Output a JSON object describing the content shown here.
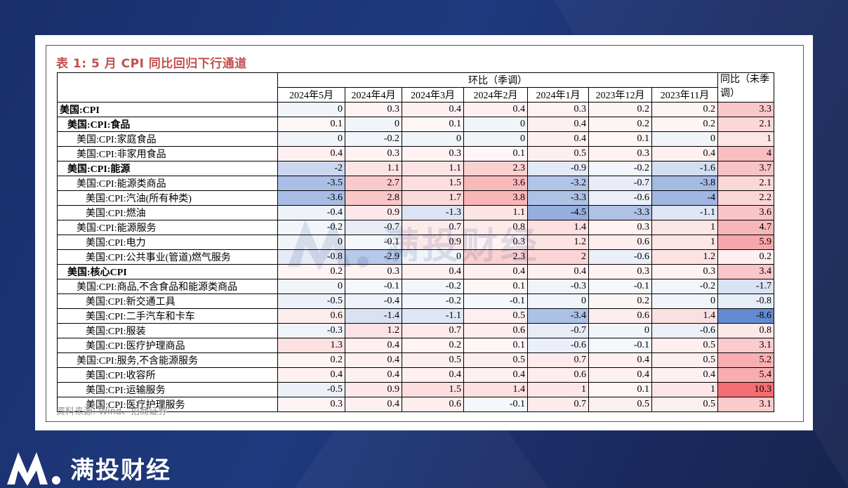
{
  "title": "表 1:  5 月 CPI 同比回归下行通道",
  "source": "资料来源: Wind、招商证券",
  "brand": "满投财经",
  "watermark": "满投财经",
  "table": {
    "group_header_mom": "环比（季调）",
    "group_header_yoy": "同比（未季调）",
    "columns": [
      "2024年5月",
      "2024年4月",
      "2024年3月",
      "2024年2月",
      "2024年1月",
      "2023年12月",
      "2023年11月"
    ],
    "rows": [
      {
        "label": "美国:CPI",
        "level": 0,
        "bold": true,
        "mom": [
          "0",
          "0.3",
          "0.4",
          "0.4",
          "0.3",
          "0.2",
          "0.2"
        ],
        "yoy": "3.3"
      },
      {
        "label": "美国:CPI:食品",
        "level": 1,
        "bold": true,
        "mom": [
          "0.1",
          "0",
          "0.1",
          "0",
          "0.4",
          "0.2",
          "0.2"
        ],
        "yoy": "2.1"
      },
      {
        "label": "美国:CPI:家庭食品",
        "level": 2,
        "bold": false,
        "mom": [
          "0",
          "-0.2",
          "0",
          "0",
          "0.4",
          "0.1",
          "0"
        ],
        "yoy": "1"
      },
      {
        "label": "美国:CPI:非家用食品",
        "level": 2,
        "bold": false,
        "mom": [
          "0.4",
          "0.3",
          "0.3",
          "0.1",
          "0.5",
          "0.3",
          "0.4"
        ],
        "yoy": "4"
      },
      {
        "label": "美国:CPI:能源",
        "level": 1,
        "bold": true,
        "mom": [
          "-2",
          "1.1",
          "1.1",
          "2.3",
          "-0.9",
          "-0.2",
          "-1.6"
        ],
        "yoy": "3.7"
      },
      {
        "label": "美国:CPI:能源类商品",
        "level": 2,
        "bold": false,
        "mom": [
          "-3.5",
          "2.7",
          "1.5",
          "3.6",
          "-3.2",
          "-0.7",
          "-3.8"
        ],
        "yoy": "2.1"
      },
      {
        "label": "美国:CPI:汽油(所有种类)",
        "level": 3,
        "bold": false,
        "mom": [
          "-3.6",
          "2.8",
          "1.7",
          "3.8",
          "-3.3",
          "-0.6",
          "-4"
        ],
        "yoy": "2.2"
      },
      {
        "label": "美国:CPI:燃油",
        "level": 3,
        "bold": false,
        "mom": [
          "-0.4",
          "0.9",
          "-1.3",
          "1.1",
          "-4.5",
          "-3.3",
          "-1.1"
        ],
        "yoy": "3.6"
      },
      {
        "label": "美国:CPI:能源服务",
        "level": 2,
        "bold": false,
        "mom": [
          "-0.2",
          "-0.7",
          "0.7",
          "0.8",
          "1.4",
          "0.3",
          "1"
        ],
        "yoy": "4.7"
      },
      {
        "label": "美国:CPI:电力",
        "level": 3,
        "bold": false,
        "mom": [
          "0",
          "-0.1",
          "0.9",
          "0.3",
          "1.2",
          "0.6",
          "1"
        ],
        "yoy": "5.9"
      },
      {
        "label": "美国:CPI:公共事业(管道)燃气服务",
        "level": 3,
        "bold": false,
        "mom": [
          "-0.8",
          "-2.9",
          "0",
          "2.3",
          "2",
          "-0.6",
          "1.2"
        ],
        "yoy": "0.2"
      },
      {
        "label": "美国:核心CPI",
        "level": 1,
        "bold": true,
        "mom": [
          "0.2",
          "0.3",
          "0.4",
          "0.4",
          "0.4",
          "0.3",
          "0.3"
        ],
        "yoy": "3.4"
      },
      {
        "label": "美国:CPI:商品,不含食品和能源类商品",
        "level": 2,
        "bold": false,
        "mom": [
          "0",
          "-0.1",
          "-0.2",
          "0.1",
          "-0.3",
          "-0.1",
          "-0.2"
        ],
        "yoy": "-1.7"
      },
      {
        "label": "美国:CPI:新交通工具",
        "level": 3,
        "bold": false,
        "mom": [
          "-0.5",
          "-0.4",
          "-0.2",
          "-0.1",
          "0",
          "0.2",
          "0"
        ],
        "yoy": "-0.8"
      },
      {
        "label": "美国:CPI:二手汽车和卡车",
        "level": 3,
        "bold": false,
        "mom": [
          "0.6",
          "-1.4",
          "-1.1",
          "0.5",
          "-3.4",
          "0.6",
          "1.4"
        ],
        "yoy": "-8.6"
      },
      {
        "label": "美国:CPI:服装",
        "level": 3,
        "bold": false,
        "mom": [
          "-0.3",
          "1.2",
          "0.7",
          "0.6",
          "-0.7",
          "0",
          "-0.6"
        ],
        "yoy": "0.8"
      },
      {
        "label": "美国:CPI:医疗护理商品",
        "level": 3,
        "bold": false,
        "mom": [
          "1.3",
          "0.4",
          "0.2",
          "0.1",
          "-0.6",
          "-0.1",
          "0.5"
        ],
        "yoy": "3.1"
      },
      {
        "label": "美国:CPI:服务,不含能源服务",
        "level": 2,
        "bold": false,
        "mom": [
          "0.2",
          "0.4",
          "0.5",
          "0.5",
          "0.7",
          "0.4",
          "0.5"
        ],
        "yoy": "5.2"
      },
      {
        "label": "美国:CPI:收容所",
        "level": 3,
        "bold": false,
        "mom": [
          "0.4",
          "0.4",
          "0.4",
          "0.4",
          "0.6",
          "0.4",
          "0.4"
        ],
        "yoy": "5.4"
      },
      {
        "label": "美国:CPI:运输服务",
        "level": 3,
        "bold": false,
        "mom": [
          "-0.5",
          "0.9",
          "1.5",
          "1.4",
          "1",
          "0.1",
          "1"
        ],
        "yoy": "10.3"
      },
      {
        "label": "美国:CPI:医疗护理服务",
        "level": 3,
        "bold": false,
        "mom": [
          "0.3",
          "0.4",
          "0.6",
          "-0.1",
          "0.7",
          "0.5",
          "0.5"
        ],
        "yoy": "3.1"
      }
    ]
  }
}
